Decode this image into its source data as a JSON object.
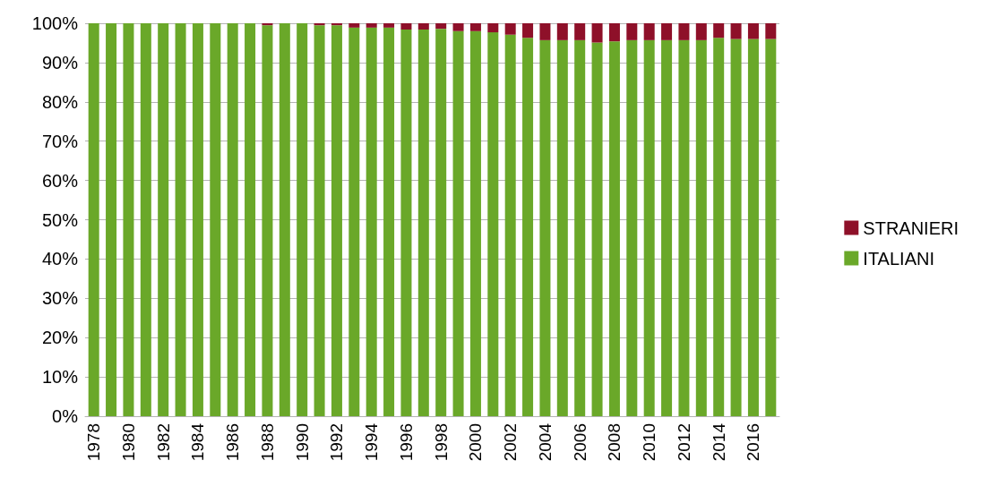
{
  "chart_data": {
    "type": "bar",
    "stacked": true,
    "categories": [
      "1978",
      null,
      "1980",
      null,
      "1982",
      null,
      "1984",
      null,
      "1986",
      null,
      "1988",
      null,
      "1990",
      null,
      "1992",
      null,
      "1994",
      null,
      "1996",
      null,
      "1998",
      null,
      "2000",
      null,
      "2002",
      null,
      "2004",
      null,
      "2006",
      null,
      "2008",
      null,
      "2010",
      null,
      "2012",
      null,
      "2014",
      null,
      "2016",
      null
    ],
    "series": [
      {
        "name": "ITALIANI",
        "color": "#6aa829",
        "values": [
          100,
          100,
          100,
          100,
          100,
          100,
          100,
          100,
          100,
          100,
          99.5,
          100,
          100,
          99.5,
          99.5,
          98.9,
          98.9,
          98.9,
          98.4,
          98.4,
          98.6,
          98.0,
          98.0,
          97.7,
          97.1,
          96.3,
          95.7,
          95.7,
          95.7,
          95.1,
          95.4,
          95.7,
          95.7,
          95.7,
          95.7,
          95.7,
          96.3,
          96.0,
          96.0,
          96.0
        ]
      },
      {
        "name": "STRANIERI",
        "color": "#8e1029",
        "values": [
          0,
          0,
          0,
          0,
          0,
          0,
          0,
          0,
          0,
          0,
          0.5,
          0,
          0,
          0.5,
          0.5,
          1.1,
          1.1,
          1.1,
          1.6,
          1.6,
          1.4,
          2.0,
          2.0,
          2.3,
          2.9,
          3.7,
          4.3,
          4.3,
          4.3,
          4.9,
          4.6,
          4.3,
          4.3,
          4.3,
          4.3,
          4.3,
          3.7,
          4.0,
          4.0,
          4.0
        ]
      }
    ],
    "ylim": [
      0,
      100
    ],
    "yticks": [
      {
        "value": 0,
        "label": "0%"
      },
      {
        "value": 10,
        "label": "10%"
      },
      {
        "value": 20,
        "label": "20%"
      },
      {
        "value": 30,
        "label": "30%"
      },
      {
        "value": 40,
        "label": "40%"
      },
      {
        "value": 50,
        "label": "50%"
      },
      {
        "value": 60,
        "label": "60%"
      },
      {
        "value": 70,
        "label": "70%"
      },
      {
        "value": 80,
        "label": "80%"
      },
      {
        "value": 90,
        "label": "90%"
      },
      {
        "value": 100,
        "label": "100%"
      }
    ],
    "grid": "y",
    "legend": "right"
  }
}
